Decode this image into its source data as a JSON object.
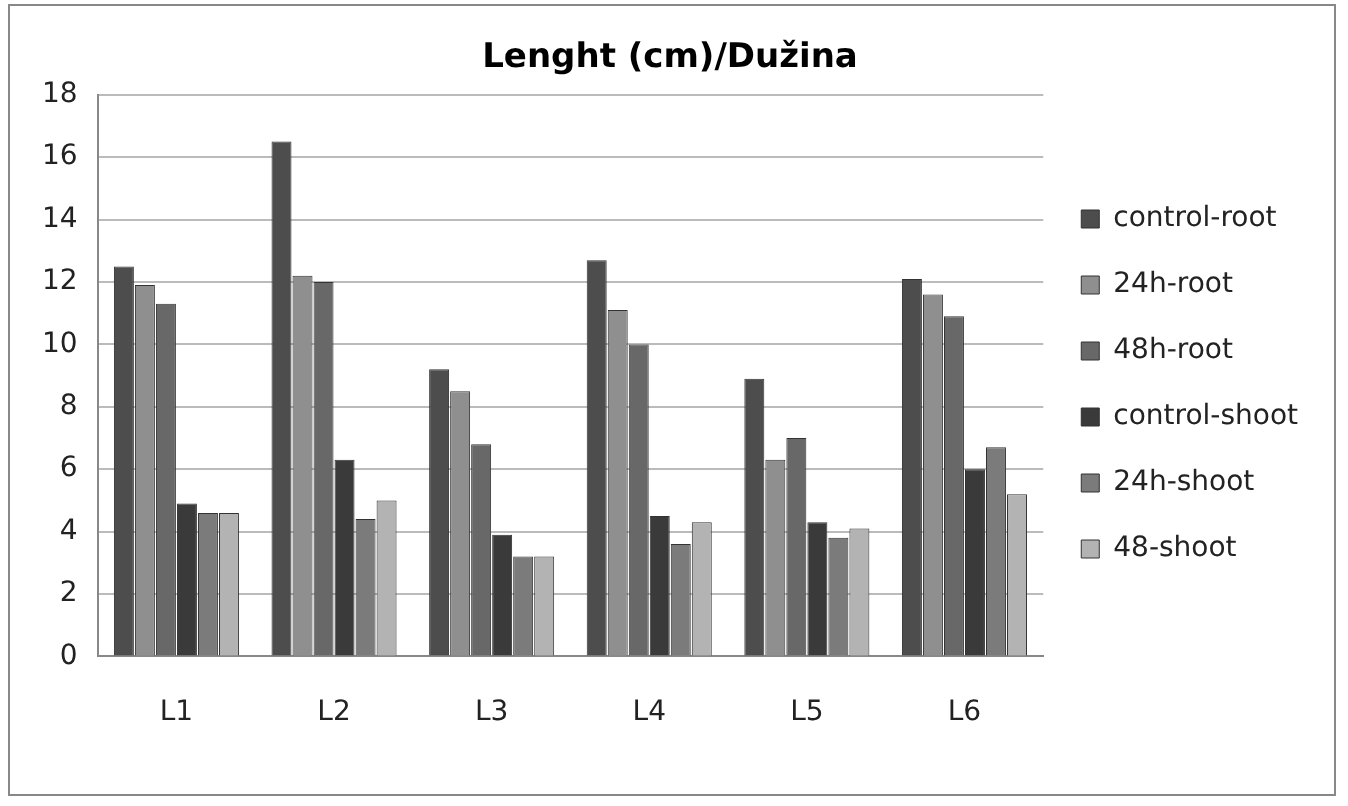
{
  "chart_data": {
    "type": "bar",
    "title": "Lenght (cm)/Dužina",
    "categories": [
      "L1",
      "L2",
      "L3",
      "L4",
      "L5",
      "L6"
    ],
    "series": [
      {
        "name": "control-root",
        "color": "#4d4d4d",
        "values": [
          12.5,
          16.5,
          9.2,
          12.7,
          8.9,
          12.1
        ]
      },
      {
        "name": "24h-root",
        "color": "#8f8f8f",
        "values": [
          11.9,
          12.2,
          8.5,
          11.1,
          6.3,
          11.6
        ]
      },
      {
        "name": "48h-root",
        "color": "#686868",
        "values": [
          11.3,
          12.0,
          6.8,
          10.0,
          7.0,
          10.9
        ]
      },
      {
        "name": "control-shoot",
        "color": "#3a3a3a",
        "values": [
          4.9,
          6.3,
          3.9,
          4.5,
          4.3,
          6.0
        ]
      },
      {
        "name": "24h-shoot",
        "color": "#7b7b7b",
        "values": [
          4.6,
          4.4,
          3.2,
          3.6,
          3.8,
          6.7
        ]
      },
      {
        "name": "48-shoot",
        "color": "#b3b3b3",
        "values": [
          4.6,
          5.0,
          3.2,
          4.3,
          4.1,
          5.2
        ]
      }
    ],
    "ylim": [
      0,
      18
    ],
    "yticks": [
      0,
      2,
      4,
      6,
      8,
      10,
      12,
      14,
      16,
      18
    ],
    "grid": "y",
    "legend": "right"
  }
}
